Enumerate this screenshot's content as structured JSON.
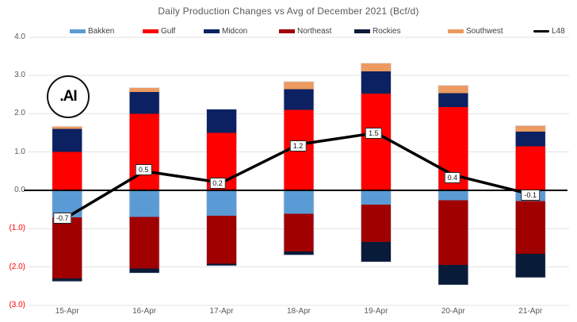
{
  "title": "Daily Production Changes vs Avg of December 2021 (Bcf/d)",
  "logo": {
    "text": ".AI"
  },
  "colors": {
    "background": "#ffffff",
    "gridline": "#e3e3e3",
    "zero_axis": "#000000",
    "bar_outline": "#d9dbe6",
    "title_text": "#595959",
    "axis_text": "#595959",
    "negative_tick_text": "#ff0000",
    "data_label_border": "#222222"
  },
  "chart_data": {
    "type": "bar",
    "subtype": "stacked-bar-with-line-combo",
    "title": "Daily Production Changes vs Avg of December 2021 (Bcf/d)",
    "xlabel": "",
    "ylabel": "",
    "ylim": [
      -3.0,
      4.0
    ],
    "grid": true,
    "legend_position": "top",
    "categories": [
      "15-Apr",
      "16-Apr",
      "17-Apr",
      "18-Apr",
      "19-Apr",
      "20-Apr",
      "21-Apr"
    ],
    "series": [
      {
        "name": "Bakken",
        "color": "#5b9bd5",
        "values": [
          -0.7,
          -0.69,
          -0.66,
          -0.61,
          -0.37,
          -0.26,
          -0.28
        ]
      },
      {
        "name": "Gulf",
        "color": "#fe0000",
        "values": [
          1.0,
          2.0,
          1.5,
          2.1,
          2.53,
          2.17,
          1.15
        ]
      },
      {
        "name": "Midcon",
        "color": "#0b2161",
        "values": [
          0.6,
          0.57,
          0.62,
          0.54,
          0.58,
          0.37,
          0.38
        ]
      },
      {
        "name": "Northeast",
        "color": "#a00000",
        "values": [
          -1.6,
          -1.35,
          -1.25,
          -0.98,
          -0.98,
          -1.69,
          -1.38
        ]
      },
      {
        "name": "Rockies",
        "color": "#081b38",
        "values": [
          -0.08,
          -0.12,
          -0.06,
          -0.1,
          -0.52,
          -0.52,
          -0.62
        ]
      },
      {
        "name": "Southwest",
        "color": "#ec9a60",
        "values": [
          0.07,
          0.11,
          0.0,
          0.2,
          0.21,
          0.2,
          0.16
        ]
      }
    ],
    "line_series": {
      "name": "L48",
      "color": "#000000",
      "values": [
        -0.7,
        0.5,
        0.2,
        1.2,
        1.5,
        0.4,
        -0.1
      ],
      "labels": [
        "-0.7",
        "0.5",
        "0.2",
        "1.2",
        "1.5",
        "0.4",
        "-0.1"
      ]
    },
    "y_ticks": [
      {
        "v": 4,
        "label": "4.0",
        "negative": false
      },
      {
        "v": 3,
        "label": "3.0",
        "negative": false
      },
      {
        "v": 2,
        "label": "2.0",
        "negative": false
      },
      {
        "v": 1,
        "label": "1.0",
        "negative": false
      },
      {
        "v": 0,
        "label": "0.0",
        "negative": false
      },
      {
        "v": -1,
        "label": "(1.0)",
        "negative": true
      },
      {
        "v": -2,
        "label": "(2.0)",
        "negative": true
      },
      {
        "v": -3,
        "label": "(3.0)",
        "negative": true
      }
    ]
  }
}
